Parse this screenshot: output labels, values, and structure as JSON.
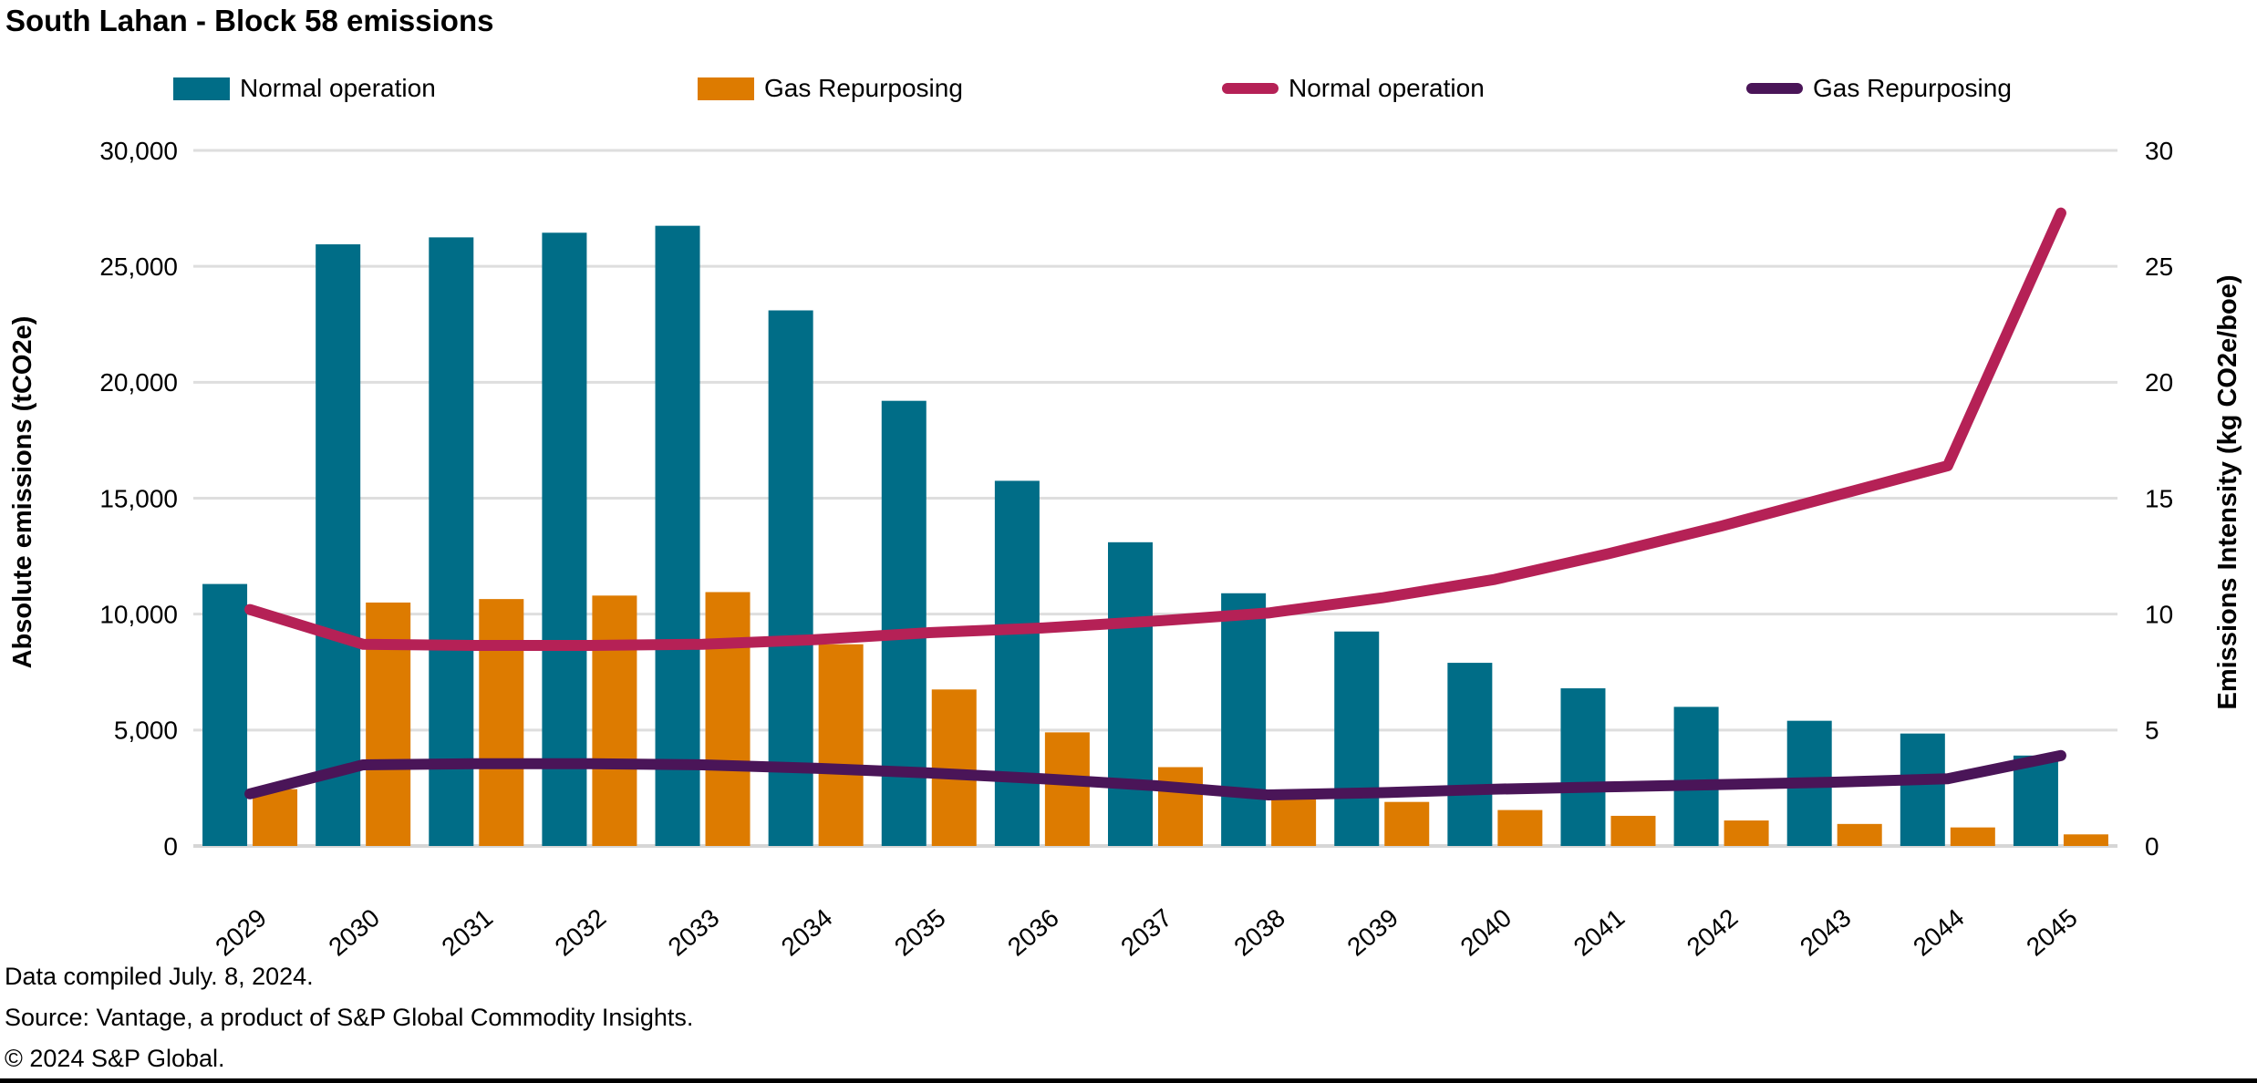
{
  "header": {
    "title": "South Lahan - Block 58 emissions"
  },
  "legend": {
    "items": [
      {
        "label": "Normal operation",
        "swatch": "bar",
        "color": "#006d87"
      },
      {
        "label": "Gas Repurposing",
        "swatch": "bar",
        "color": "#dd7b00"
      },
      {
        "label": "Normal operation",
        "swatch": "line",
        "color": "#b52156"
      },
      {
        "label": "Gas Repurposing",
        "swatch": "line",
        "color": "#4a1558"
      }
    ]
  },
  "chart_data": {
    "type": "bar+line",
    "categories": [
      "2029",
      "2030",
      "2031",
      "2032",
      "2033",
      "2034",
      "2035",
      "2036",
      "2037",
      "2038",
      "2039",
      "2040",
      "2041",
      "2042",
      "2043",
      "2044",
      "2045"
    ],
    "bar_series": [
      {
        "name": "Normal operation",
        "axis": "left",
        "color": "#006d87",
        "values": [
          11300,
          25950,
          26250,
          26450,
          26750,
          23100,
          19200,
          15750,
          13100,
          10900,
          9250,
          7900,
          6800,
          6000,
          5400,
          4850,
          3900
        ]
      },
      {
        "name": "Gas Repurposing",
        "axis": "left",
        "color": "#dd7b00",
        "values": [
          2450,
          10500,
          10650,
          10800,
          10950,
          8700,
          6750,
          4900,
          3400,
          2050,
          1900,
          1550,
          1300,
          1100,
          950,
          800,
          500
        ]
      }
    ],
    "line_series": [
      {
        "name": "Normal operation",
        "axis": "right",
        "color": "#b52156",
        "values": [
          10.2,
          8.7,
          8.65,
          8.65,
          8.7,
          8.9,
          9.2,
          9.4,
          9.7,
          10.05,
          10.7,
          11.5,
          12.6,
          13.8,
          15.1,
          16.4,
          27.3
        ]
      },
      {
        "name": "Gas Repurposing",
        "axis": "right",
        "color": "#4a1558",
        "values": [
          2.25,
          3.5,
          3.55,
          3.55,
          3.5,
          3.35,
          3.15,
          2.9,
          2.6,
          2.2,
          2.3,
          2.45,
          2.55,
          2.65,
          2.75,
          2.9,
          3.9
        ]
      }
    ],
    "left_axis": {
      "title": "Absolute emissions (tCO2e)",
      "min": 0,
      "max": 30000,
      "step": 5000,
      "tick_labels": [
        "0",
        "5,000",
        "10,000",
        "15,000",
        "20,000",
        "25,000",
        "30,000"
      ]
    },
    "right_axis": {
      "title": "Emissions Intensity (kg CO2e/boe)",
      "min": 0,
      "max": 30,
      "step": 5,
      "tick_labels": [
        "0",
        "5",
        "10",
        "15",
        "20",
        "25",
        "30"
      ]
    },
    "grid": true,
    "legend_position": "top"
  },
  "footer": {
    "lines": [
      "Data compiled July. 8, 2024.",
      "Source: Vantage, a product of S&P Global Commodity Insights.",
      "© 2024 S&P Global."
    ]
  },
  "colors": {
    "grid": "#dedede",
    "baseline": "#d6d6d6",
    "background": "#ffffff",
    "text": "#000000"
  }
}
